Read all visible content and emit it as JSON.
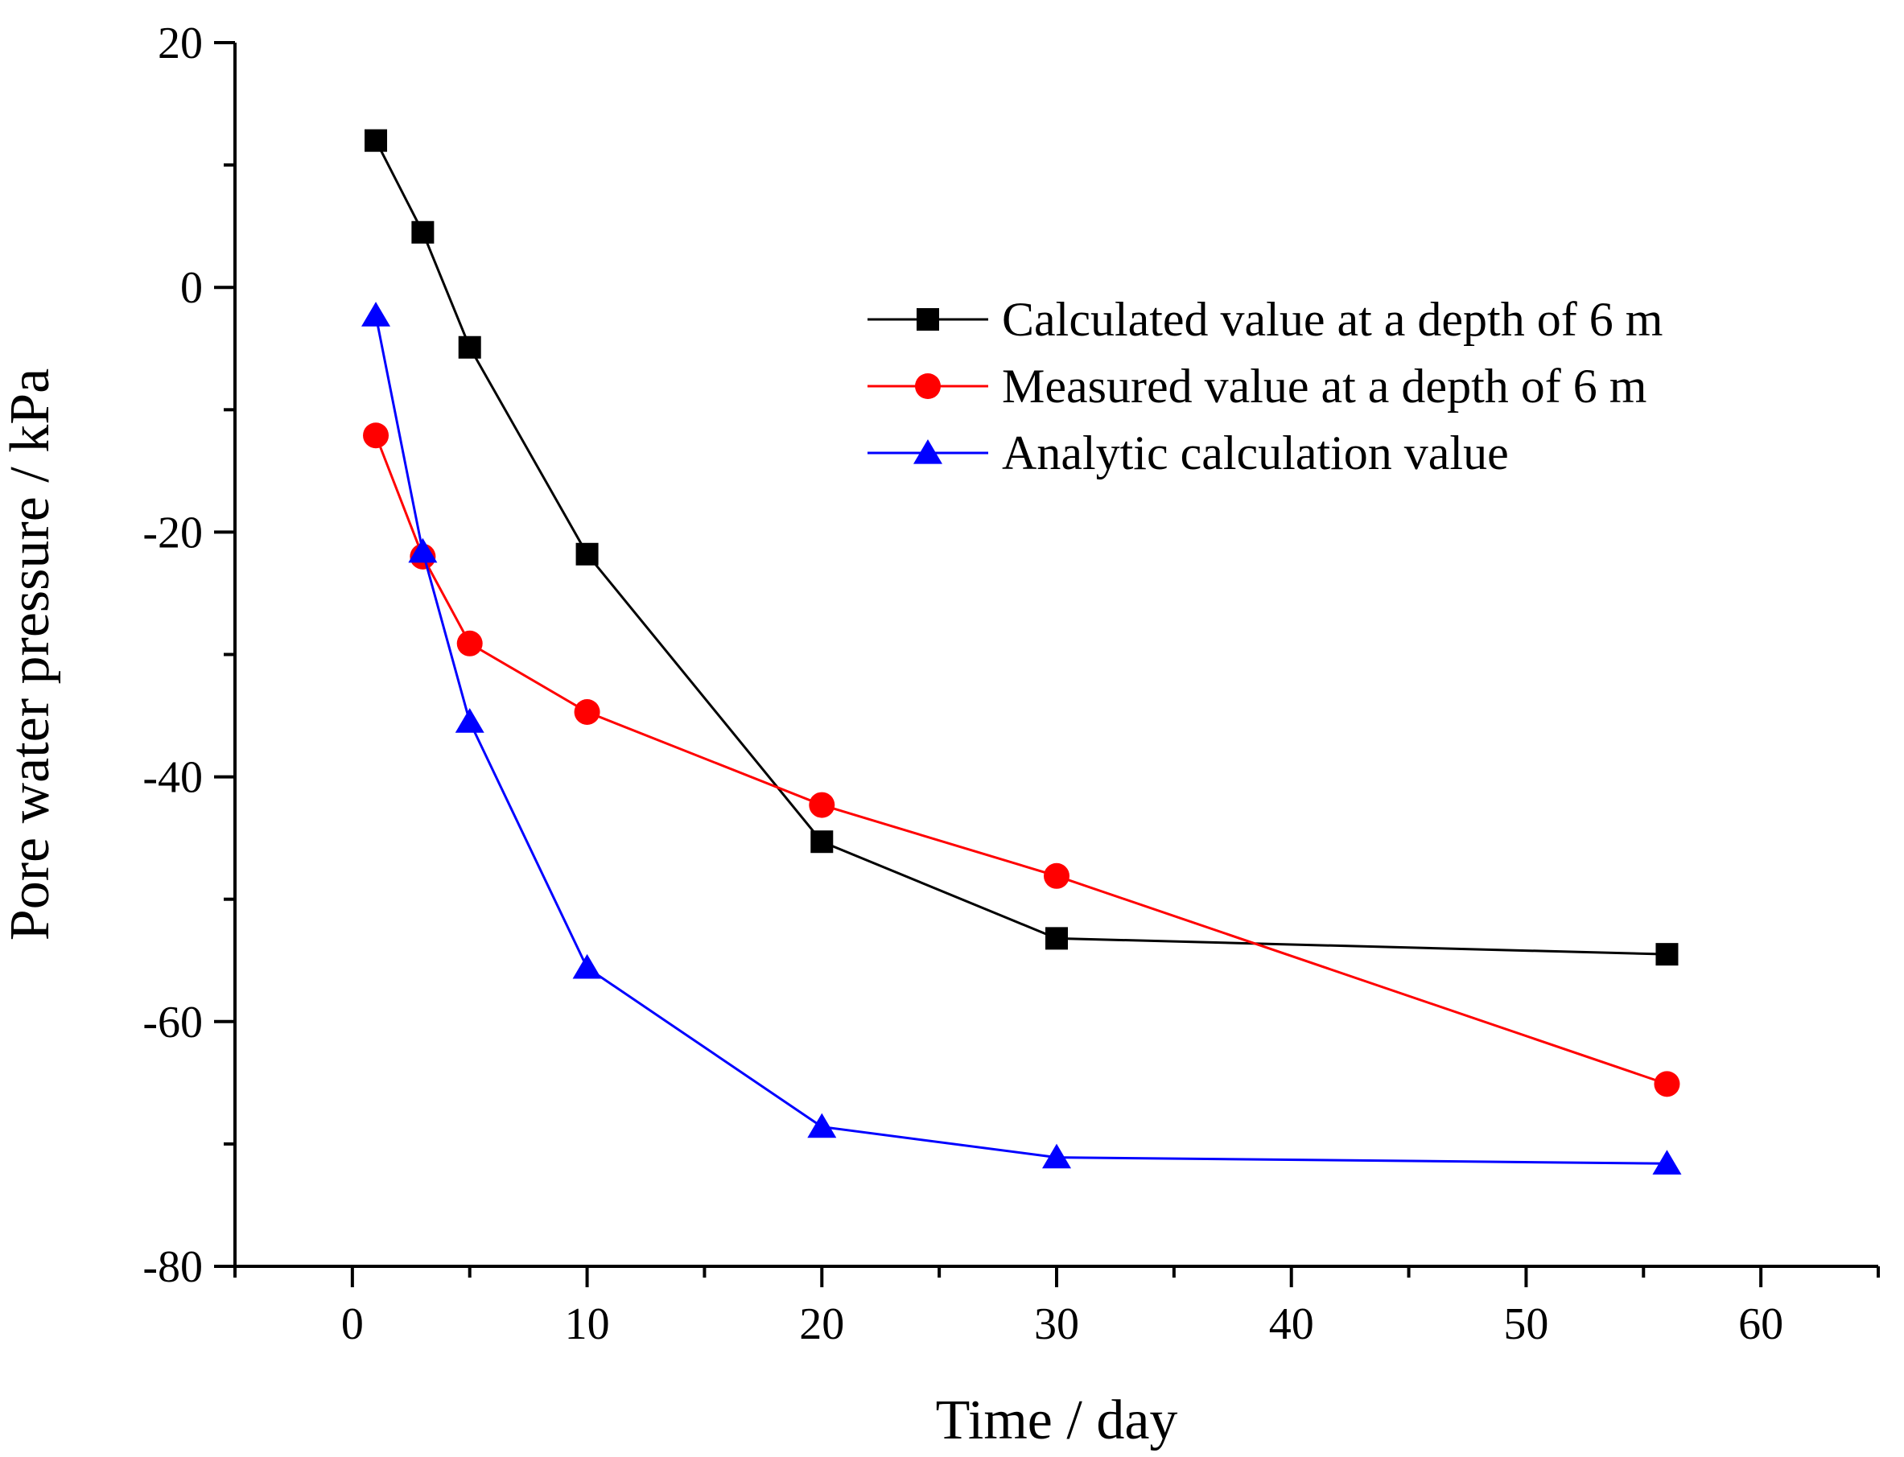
{
  "chart_data": {
    "type": "line",
    "title": "",
    "xlabel": "Time / day",
    "ylabel": "Pore water pressure / kPa",
    "xlim": [
      -5,
      65
    ],
    "ylim": [
      -80,
      20
    ],
    "xticks": [
      0,
      10,
      20,
      30,
      40,
      50,
      60
    ],
    "yticks": [
      -80,
      -60,
      -40,
      -20,
      0,
      20
    ],
    "grid": false,
    "legend_position": "top-right",
    "x": [
      1,
      3,
      5,
      10,
      20,
      30,
      56
    ],
    "series": [
      {
        "name": "Calculated value at a depth of 6 m",
        "color": "#000000",
        "marker": "square",
        "values": [
          12,
          4.5,
          -4.9,
          -21.8,
          -45.3,
          -53.2,
          -54.5
        ]
      },
      {
        "name": "Measured value at a depth of 6 m",
        "color": "#ff0000",
        "marker": "circle",
        "values": [
          -12.1,
          -22,
          -29.1,
          -34.7,
          -42.3,
          -48.1,
          -65.1
        ]
      },
      {
        "name": "Analytic calculation value",
        "color": "#0000ff",
        "marker": "triangle",
        "values": [
          -2.3,
          -21.6,
          -35.5,
          -55.6,
          -68.6,
          -71.1,
          -71.6
        ]
      }
    ]
  }
}
